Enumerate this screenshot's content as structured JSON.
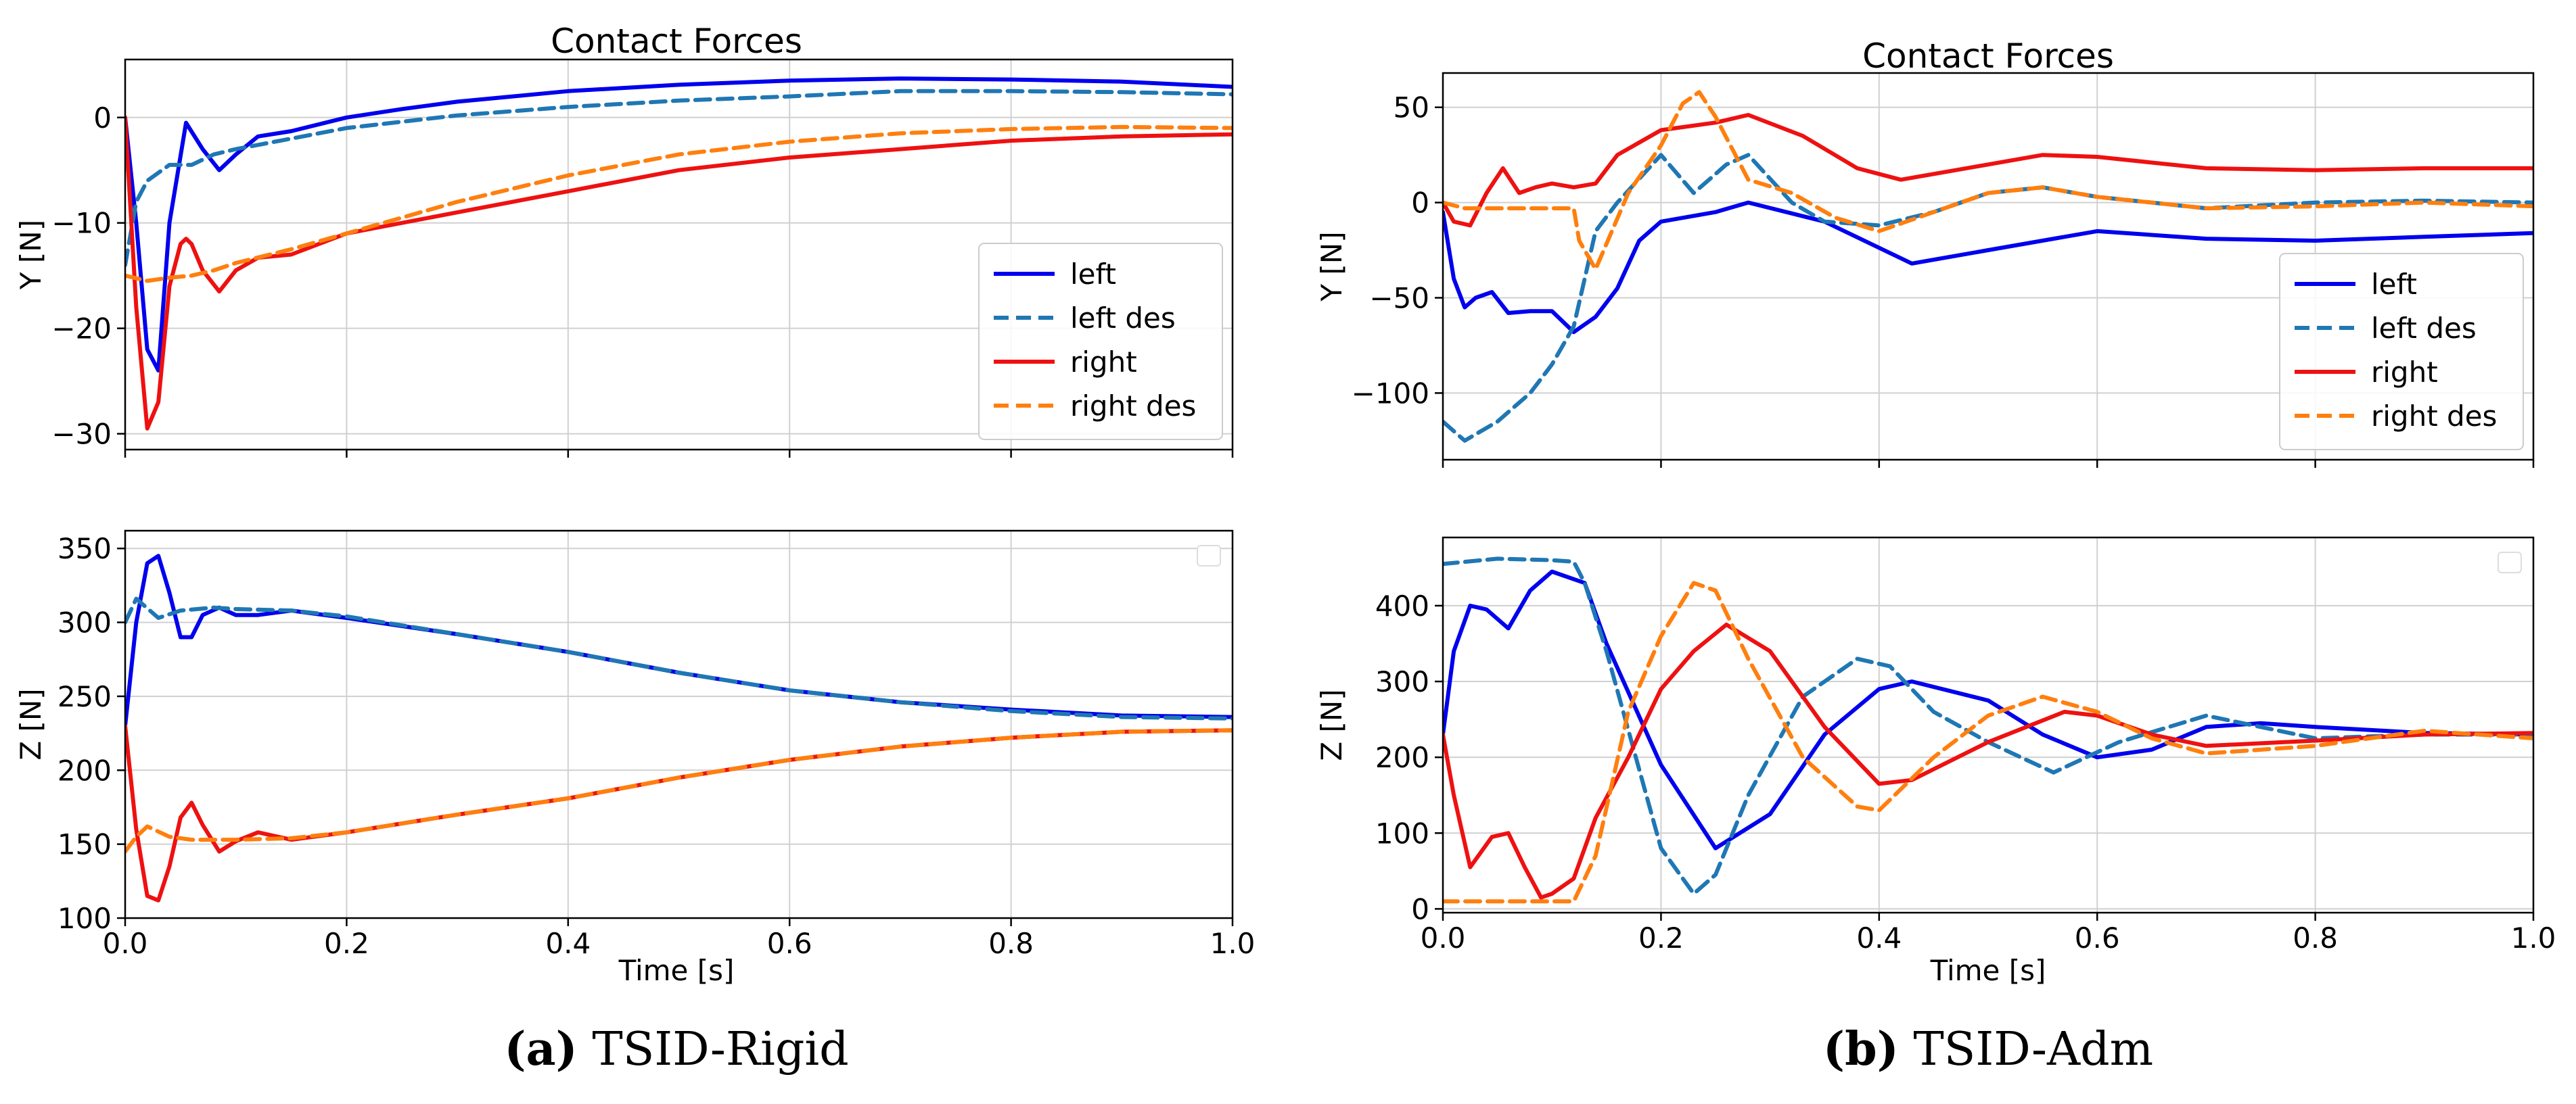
{
  "colors": {
    "left": "#0000ee",
    "left_des": "#1f77b4",
    "right": "#ee1111",
    "right_des": "#ff7f0e",
    "grid": "#d0d0d0"
  },
  "panels": [
    {
      "caption_label": "(a)",
      "caption_text": " TSID-Rigid",
      "title": "Contact Forces",
      "xlabel": "Time [s]",
      "xlim": [
        0,
        1
      ],
      "xticks": [
        0,
        0.2,
        0.4,
        0.6,
        0.8,
        1.0
      ],
      "xtick_labels": [
        "0.0",
        "0.2",
        "0.4",
        "0.6",
        "0.8",
        "1.0"
      ],
      "legend": [
        "left",
        "left des",
        "right",
        "right des"
      ]
    },
    {
      "caption_label": "(b)",
      "caption_text": " TSID-Adm",
      "title": "Contact Forces",
      "xlabel": "Time [s]",
      "xlim": [
        0,
        1
      ],
      "xticks": [
        0,
        0.2,
        0.4,
        0.6,
        0.8,
        1.0
      ],
      "xtick_labels": [
        "0.0",
        "0.2",
        "0.4",
        "0.6",
        "0.8",
        "1.0"
      ],
      "legend": [
        "left",
        "left des",
        "right",
        "right des"
      ]
    }
  ],
  "chart_data": [
    {
      "type": "line",
      "id": "a-y",
      "title": "Contact Forces",
      "xlabel": "",
      "ylabel": "Y [N]",
      "ylim": [
        -31.5,
        5.5
      ],
      "yticks": [
        0,
        -10,
        -20,
        -30
      ],
      "ytick_labels": [
        "0",
        "−10",
        "−20",
        "−30"
      ],
      "legend_position": "lower-right",
      "series": [
        {
          "name": "left",
          "style": "solid",
          "x": [
            0,
            0.01,
            0.02,
            0.03,
            0.04,
            0.055,
            0.07,
            0.085,
            0.1,
            0.12,
            0.15,
            0.2,
            0.25,
            0.3,
            0.35,
            0.4,
            0.5,
            0.6,
            0.7,
            0.8,
            0.9,
            1.0
          ],
          "y": [
            0,
            -10,
            -22,
            -24,
            -10,
            -0.5,
            -3,
            -5,
            -3.5,
            -1.8,
            -1.3,
            0,
            0.8,
            1.5,
            2,
            2.5,
            3.1,
            3.5,
            3.7,
            3.6,
            3.4,
            2.9
          ]
        },
        {
          "name": "left des",
          "style": "dashed",
          "x": [
            0,
            0.01,
            0.02,
            0.04,
            0.06,
            0.08,
            0.1,
            0.15,
            0.2,
            0.3,
            0.4,
            0.5,
            0.6,
            0.7,
            0.8,
            0.9,
            1.0
          ],
          "y": [
            -14,
            -8,
            -6,
            -4.5,
            -4.5,
            -3.5,
            -3,
            -2,
            -1,
            0.2,
            1,
            1.6,
            2,
            2.5,
            2.5,
            2.4,
            2.2
          ]
        },
        {
          "name": "right",
          "style": "solid",
          "x": [
            0,
            0.01,
            0.02,
            0.03,
            0.04,
            0.05,
            0.055,
            0.06,
            0.07,
            0.085,
            0.1,
            0.12,
            0.15,
            0.2,
            0.3,
            0.4,
            0.5,
            0.6,
            0.7,
            0.8,
            0.9,
            1.0
          ],
          "y": [
            0,
            -18,
            -29.5,
            -27,
            -16,
            -12,
            -11.5,
            -12,
            -14.5,
            -16.5,
            -14.5,
            -13.3,
            -13,
            -11,
            -9,
            -7,
            -5,
            -3.8,
            -3,
            -2.2,
            -1.8,
            -1.6
          ]
        },
        {
          "name": "right des",
          "style": "dashed",
          "x": [
            0,
            0.02,
            0.04,
            0.06,
            0.08,
            0.1,
            0.15,
            0.2,
            0.3,
            0.4,
            0.5,
            0.6,
            0.7,
            0.8,
            0.9,
            1.0
          ],
          "y": [
            -15,
            -15.5,
            -15.2,
            -15,
            -14.5,
            -13.8,
            -12.5,
            -11,
            -8,
            -5.5,
            -3.5,
            -2.3,
            -1.5,
            -1.1,
            -0.9,
            -1
          ]
        }
      ]
    },
    {
      "type": "line",
      "id": "a-z",
      "xlabel": "Time [s]",
      "ylabel": "Z [N]",
      "ylim": [
        100,
        362
      ],
      "yticks": [
        100,
        150,
        200,
        250,
        300,
        350
      ],
      "ytick_labels": [
        "100",
        "150",
        "200",
        "250",
        "300",
        "350"
      ],
      "series": [
        {
          "name": "left",
          "style": "solid",
          "x": [
            0,
            0.01,
            0.02,
            0.03,
            0.04,
            0.05,
            0.06,
            0.07,
            0.085,
            0.1,
            0.12,
            0.15,
            0.2,
            0.3,
            0.4,
            0.5,
            0.6,
            0.7,
            0.8,
            0.9,
            1.0
          ],
          "y": [
            230,
            300,
            340,
            345,
            320,
            290,
            290,
            305,
            310,
            305,
            305,
            308,
            303,
            292,
            280,
            266,
            254,
            246,
            241,
            237,
            236
          ]
        },
        {
          "name": "left des",
          "style": "dashed",
          "x": [
            0,
            0.01,
            0.03,
            0.05,
            0.08,
            0.1,
            0.15,
            0.2,
            0.3,
            0.4,
            0.5,
            0.6,
            0.7,
            0.8,
            0.9,
            1.0
          ],
          "y": [
            300,
            316,
            303,
            308,
            310,
            309,
            308,
            304,
            292,
            280,
            266,
            254,
            246,
            240,
            236,
            235
          ]
        },
        {
          "name": "right",
          "style": "solid",
          "x": [
            0,
            0.01,
            0.02,
            0.03,
            0.04,
            0.05,
            0.06,
            0.07,
            0.085,
            0.1,
            0.12,
            0.15,
            0.2,
            0.3,
            0.4,
            0.5,
            0.6,
            0.7,
            0.8,
            0.9,
            1.0
          ],
          "y": [
            230,
            160,
            115,
            112,
            135,
            168,
            178,
            163,
            145,
            152,
            158,
            153,
            158,
            170,
            181,
            195,
            207,
            216,
            222,
            226,
            227
          ]
        },
        {
          "name": "right des",
          "style": "dashed",
          "x": [
            0,
            0.01,
            0.02,
            0.04,
            0.06,
            0.1,
            0.15,
            0.2,
            0.3,
            0.4,
            0.5,
            0.6,
            0.7,
            0.8,
            0.9,
            1.0
          ],
          "y": [
            145,
            155,
            162,
            155,
            153,
            153,
            154,
            158,
            170,
            181,
            195,
            207,
            216,
            222,
            226,
            227
          ]
        }
      ]
    },
    {
      "type": "line",
      "id": "b-y",
      "title": "Contact Forces",
      "xlabel": "",
      "ylabel": "Y [N]",
      "ylim": [
        -135,
        68
      ],
      "yticks": [
        50,
        0,
        -50,
        -100
      ],
      "ytick_labels": [
        "50",
        "0",
        "−50",
        "−100"
      ],
      "legend_position": "lower-right",
      "series": [
        {
          "name": "left",
          "style": "solid",
          "x": [
            0,
            0.01,
            0.02,
            0.03,
            0.045,
            0.06,
            0.08,
            0.1,
            0.12,
            0.14,
            0.16,
            0.18,
            0.2,
            0.25,
            0.28,
            0.35,
            0.43,
            0.5,
            0.6,
            0.7,
            0.8,
            0.9,
            1.0
          ],
          "y": [
            -5,
            -40,
            -55,
            -50,
            -47,
            -58,
            -57,
            -57,
            -68,
            -60,
            -45,
            -20,
            -10,
            -5,
            0,
            -10,
            -32,
            -25,
            -15,
            -19,
            -20,
            -18,
            -16
          ]
        },
        {
          "name": "left des",
          "style": "dashed",
          "x": [
            0,
            0.02,
            0.05,
            0.08,
            0.1,
            0.12,
            0.14,
            0.16,
            0.2,
            0.23,
            0.26,
            0.28,
            0.32,
            0.35,
            0.4,
            0.45,
            0.5,
            0.55,
            0.6,
            0.7,
            0.8,
            0.9,
            1.0
          ],
          "y": [
            -115,
            -125,
            -115,
            -100,
            -85,
            -65,
            -15,
            0,
            25,
            5,
            20,
            25,
            0,
            -10,
            -12,
            -5,
            5,
            8,
            3,
            -3,
            0,
            1,
            0
          ]
        },
        {
          "name": "right",
          "style": "solid",
          "x": [
            0,
            0.01,
            0.025,
            0.04,
            0.055,
            0.07,
            0.085,
            0.1,
            0.12,
            0.14,
            0.16,
            0.2,
            0.25,
            0.28,
            0.33,
            0.38,
            0.42,
            0.5,
            0.55,
            0.6,
            0.7,
            0.8,
            0.9,
            1.0
          ],
          "y": [
            0,
            -10,
            -12,
            5,
            18,
            5,
            8,
            10,
            8,
            10,
            25,
            38,
            42,
            46,
            35,
            18,
            12,
            20,
            25,
            24,
            18,
            17,
            18,
            18
          ]
        },
        {
          "name": "right des",
          "style": "dashed",
          "x": [
            0,
            0.02,
            0.1,
            0.12,
            0.125,
            0.14,
            0.17,
            0.2,
            0.22,
            0.235,
            0.25,
            0.28,
            0.32,
            0.36,
            0.4,
            0.45,
            0.5,
            0.55,
            0.6,
            0.7,
            0.8,
            0.9,
            1.0
          ],
          "y": [
            0,
            -3,
            -3,
            -3,
            -20,
            -35,
            5,
            30,
            52,
            58,
            45,
            12,
            5,
            -8,
            -15,
            -5,
            5,
            8,
            3,
            -3,
            -2,
            0,
            -2
          ]
        }
      ]
    },
    {
      "type": "line",
      "id": "b-z",
      "xlabel": "Time [s]",
      "ylabel": "Z [N]",
      "ylim": [
        -5,
        490
      ],
      "yticks": [
        0,
        100,
        200,
        300,
        400
      ],
      "ytick_labels": [
        "0",
        "100",
        "200",
        "300",
        "400"
      ],
      "series": [
        {
          "name": "left",
          "style": "solid",
          "x": [
            0,
            0.01,
            0.025,
            0.04,
            0.06,
            0.08,
            0.1,
            0.13,
            0.15,
            0.2,
            0.25,
            0.3,
            0.35,
            0.4,
            0.43,
            0.5,
            0.55,
            0.6,
            0.65,
            0.7,
            0.75,
            0.8,
            0.9,
            1.0
          ],
          "y": [
            230,
            340,
            400,
            395,
            370,
            420,
            445,
            430,
            350,
            190,
            80,
            125,
            230,
            290,
            300,
            275,
            230,
            200,
            210,
            240,
            245,
            240,
            232,
            230
          ]
        },
        {
          "name": "left des",
          "style": "dashed",
          "x": [
            0,
            0.05,
            0.1,
            0.12,
            0.13,
            0.15,
            0.2,
            0.23,
            0.25,
            0.28,
            0.33,
            0.38,
            0.41,
            0.45,
            0.5,
            0.56,
            0.62,
            0.7,
            0.75,
            0.8,
            0.9,
            1.0
          ],
          "y": [
            455,
            462,
            460,
            458,
            430,
            340,
            80,
            20,
            45,
            150,
            280,
            330,
            320,
            260,
            220,
            180,
            220,
            255,
            240,
            225,
            230,
            230
          ]
        },
        {
          "name": "right",
          "style": "solid",
          "x": [
            0,
            0.01,
            0.025,
            0.045,
            0.06,
            0.075,
            0.09,
            0.1,
            0.12,
            0.14,
            0.17,
            0.2,
            0.23,
            0.26,
            0.3,
            0.35,
            0.4,
            0.43,
            0.5,
            0.57,
            0.6,
            0.65,
            0.7,
            0.8,
            0.9,
            1.0
          ],
          "y": [
            230,
            150,
            55,
            95,
            100,
            55,
            15,
            20,
            40,
            120,
            200,
            290,
            340,
            375,
            340,
            240,
            165,
            170,
            220,
            260,
            255,
            230,
            215,
            222,
            230,
            232
          ]
        },
        {
          "name": "right des",
          "style": "dashed",
          "x": [
            0,
            0.05,
            0.1,
            0.12,
            0.14,
            0.17,
            0.2,
            0.23,
            0.25,
            0.28,
            0.33,
            0.38,
            0.4,
            0.45,
            0.5,
            0.55,
            0.6,
            0.65,
            0.7,
            0.8,
            0.9,
            1.0
          ],
          "y": [
            10,
            10,
            10,
            10,
            70,
            260,
            360,
            430,
            420,
            330,
            200,
            135,
            130,
            200,
            255,
            280,
            260,
            225,
            205,
            215,
            235,
            225
          ]
        }
      ]
    }
  ]
}
